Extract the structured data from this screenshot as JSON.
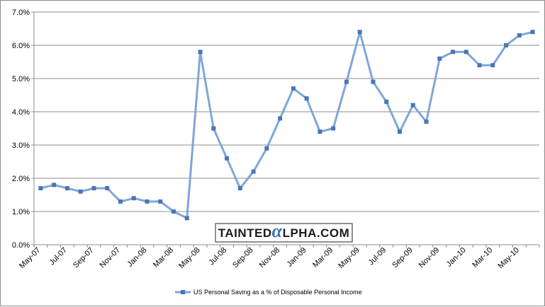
{
  "chart_data": {
    "type": "line",
    "title": "",
    "xlabel": "",
    "ylabel": "",
    "ylim": [
      0.0,
      7.0
    ],
    "y_ticks": [
      "0.0%",
      "1.0%",
      "2.0%",
      "3.0%",
      "4.0%",
      "5.0%",
      "6.0%",
      "7.0%"
    ],
    "x": [
      "May-07",
      "Jun-07",
      "Jul-07",
      "Aug-07",
      "Sep-07",
      "Oct-07",
      "Nov-07",
      "Dec-07",
      "Jan-08",
      "Feb-08",
      "Mar-08",
      "Apr-08",
      "May-08",
      "Jun-08",
      "Jul-08",
      "Aug-08",
      "Sep-08",
      "Oct-08",
      "Nov-08",
      "Dec-08",
      "Jan-09",
      "Feb-09",
      "Mar-09",
      "Apr-09",
      "May-09",
      "Jun-09",
      "Jul-09",
      "Aug-09",
      "Sep-09",
      "Oct-09",
      "Nov-09",
      "Dec-09",
      "Jan-10",
      "Feb-10",
      "Mar-10",
      "Apr-10",
      "May-10",
      "Jun-10"
    ],
    "x_tick_labels": [
      "May-07",
      "Jul-07",
      "Sep-07",
      "Nov-07",
      "Jan-08",
      "Mar-08",
      "May-08",
      "Jul-08",
      "Sep-08",
      "Nov-08",
      "Jan-09",
      "Mar-09",
      "May-09",
      "Jul-09",
      "Sep-09",
      "Nov-09",
      "Jan-10",
      "Mar-10",
      "May-10"
    ],
    "series": [
      {
        "name": "US Personal Saving as a % of Disposable Personal Income",
        "color": "#7fa6d9",
        "marker_color": "#4a75b5",
        "values": [
          1.7,
          1.8,
          1.7,
          1.6,
          1.7,
          1.7,
          1.3,
          1.4,
          1.3,
          1.3,
          1.0,
          0.8,
          5.8,
          3.5,
          2.6,
          1.7,
          2.2,
          2.9,
          3.8,
          4.7,
          4.4,
          3.4,
          3.5,
          4.9,
          6.4,
          4.9,
          4.3,
          3.4,
          4.2,
          3.7,
          5.6,
          5.8,
          5.8,
          5.4,
          5.4,
          6.0,
          6.3,
          6.4
        ]
      }
    ],
    "grid": true,
    "legend_position": "bottom",
    "watermark": "TAINTEDALPHA.COM"
  }
}
